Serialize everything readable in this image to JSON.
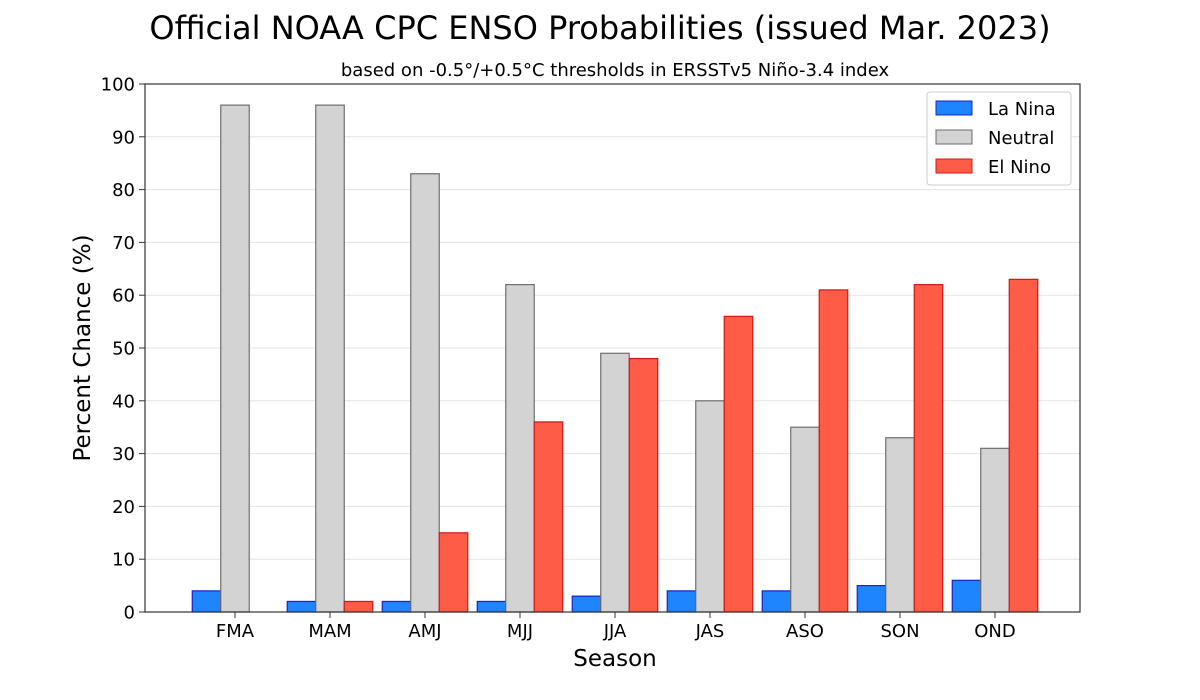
{
  "chart_data": {
    "type": "bar",
    "title": "Official NOAA CPC ENSO Probabilities (issued Mar. 2023)",
    "subtitle": "based on -0.5°/+0.5°C thresholds in ERSSTv5 Niño-3.4 index",
    "xlabel": "Season",
    "ylabel": "Percent Chance (%)",
    "ylim": [
      0,
      100
    ],
    "yticks": [
      0,
      10,
      20,
      30,
      40,
      50,
      60,
      70,
      80,
      90,
      100
    ],
    "grid": true,
    "legend_position": "top-right",
    "categories": [
      "FMA",
      "MAM",
      "AMJ",
      "MJJ",
      "JJA",
      "JAS",
      "ASO",
      "SON",
      "OND"
    ],
    "series": [
      {
        "name": "La Nina",
        "color": "#1f85ff",
        "edge": "#1a23c8",
        "values": [
          4,
          2,
          2,
          2,
          3,
          4,
          4,
          5,
          6
        ]
      },
      {
        "name": "Neutral",
        "color": "#d3d3d3",
        "edge": "#6e6e6e",
        "values": [
          96,
          96,
          83,
          62,
          49,
          40,
          35,
          33,
          31
        ]
      },
      {
        "name": "El Nino",
        "color": "#ff5c47",
        "edge": "#d01818",
        "values": [
          0,
          2,
          15,
          36,
          48,
          56,
          61,
          62,
          63
        ]
      }
    ]
  }
}
